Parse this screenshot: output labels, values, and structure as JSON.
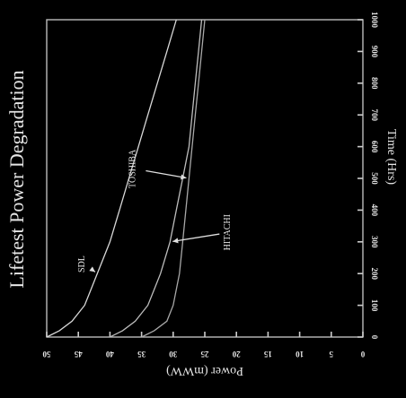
{
  "chart_data": {
    "type": "line",
    "title": "Lifetest Power Degradation",
    "xlabel": "Time (Hrs)",
    "ylabel": "Power (mWW)",
    "xlim": [
      0,
      1000
    ],
    "ylim": [
      0,
      50
    ],
    "x_ticks": [
      0,
      100,
      200,
      300,
      400,
      500,
      600,
      700,
      800,
      900,
      1000
    ],
    "x_tick_labels": [
      "0",
      "100",
      "200",
      "300",
      "400",
      "500",
      "600",
      "700",
      "800",
      "900",
      "1000"
    ],
    "y_ticks": [
      0,
      5,
      10,
      15,
      20,
      25,
      30,
      35,
      40,
      45,
      50
    ],
    "y_tick_labels": [
      "0",
      "5",
      "10",
      "15",
      "20",
      "25",
      "30",
      "35",
      "40",
      "45",
      "50"
    ],
    "orientation": "rotated 90 degrees clockwise",
    "grid": false,
    "series": [
      {
        "name": "SDL",
        "color": "#d8d8d8",
        "x": [
          0,
          20,
          50,
          100,
          150,
          200,
          300,
          400,
          500,
          600,
          700,
          800,
          900,
          1000
        ],
        "y": [
          50,
          48,
          46,
          44,
          43,
          42,
          40,
          38.5,
          37,
          35.5,
          34,
          32.5,
          31,
          29.5
        ]
      },
      {
        "name": "HITACHI",
        "color": "#bdbdbd",
        "x": [
          0,
          20,
          50,
          100,
          150,
          200,
          300,
          400,
          500,
          600,
          700,
          800,
          900,
          1000
        ],
        "y": [
          40,
          38,
          36,
          34,
          33,
          32,
          30.5,
          29.5,
          28.5,
          27.5,
          27,
          26.5,
          26,
          25.5
        ]
      },
      {
        "name": "TOSHIBA",
        "color": "#a8a8a8",
        "x": [
          0,
          20,
          50,
          100,
          150,
          200,
          300,
          400,
          500,
          600,
          700,
          800,
          900,
          1000
        ],
        "y": [
          35,
          33,
          31,
          30,
          29.5,
          29,
          28.5,
          28,
          27.5,
          27,
          26.5,
          26,
          25.5,
          25
        ]
      }
    ],
    "annotations": [
      {
        "text": "SDL",
        "series": "SDL",
        "x": 230,
        "y": 44
      },
      {
        "text": "TOSHIBA",
        "series": "TOSHIBA",
        "x": 530,
        "y": 36
      },
      {
        "text": "HITACHI",
        "series": "HITACHI",
        "x": 330,
        "y": 21
      }
    ]
  }
}
